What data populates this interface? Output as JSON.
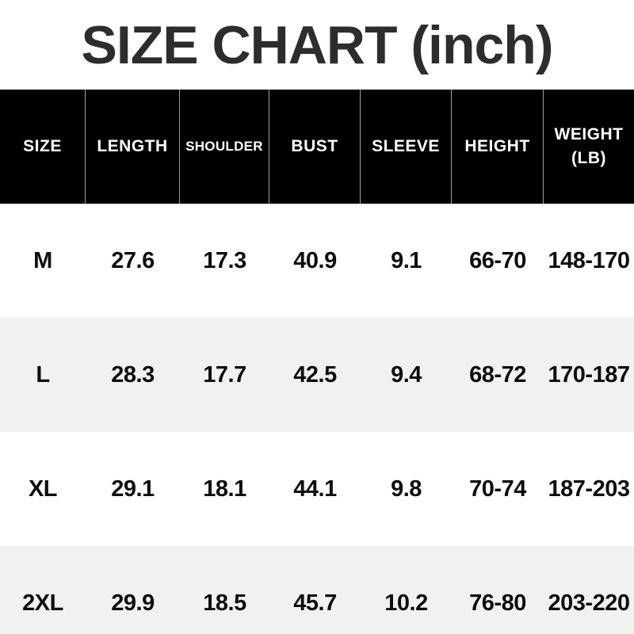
{
  "title": "SIZE CHART (inch)",
  "colors": {
    "header_bg": "#000000",
    "header_text": "#ffffff",
    "row_alt_bg": "#f1f1f0",
    "row_bg": "#ffffff",
    "title_color": "#2d2d2d",
    "body_text": "#0d0d0d",
    "header_divider": "#9e9e9e"
  },
  "table": {
    "columns": [
      {
        "label": "SIZE"
      },
      {
        "label": "LENGTH"
      },
      {
        "label": "SHOULDER"
      },
      {
        "label": "BUST"
      },
      {
        "label": "SLEEVE"
      },
      {
        "label": "HEIGHT"
      },
      {
        "label": "WEIGHT",
        "label_line2": "(LB)"
      }
    ],
    "rows": [
      {
        "size": "M",
        "length": "27.6",
        "shoulder": "17.3",
        "bust": "40.9",
        "sleeve": "9.1",
        "height": "66-70",
        "weight": "148-170"
      },
      {
        "size": "L",
        "length": "28.3",
        "shoulder": "17.7",
        "bust": "42.5",
        "sleeve": "9.4",
        "height": "68-72",
        "weight": "170-187"
      },
      {
        "size": "XL",
        "length": "29.1",
        "shoulder": "18.1",
        "bust": "44.1",
        "sleeve": "9.8",
        "height": "70-74",
        "weight": "187-203"
      },
      {
        "size": "2XL",
        "length": "29.9",
        "shoulder": "18.5",
        "bust": "45.7",
        "sleeve": "10.2",
        "height": "76-80",
        "weight": "203-220"
      }
    ]
  },
  "chart_data": {
    "type": "table",
    "title": "SIZE CHART (inch)",
    "columns": [
      "SIZE",
      "LENGTH",
      "SHOULDER",
      "BUST",
      "SLEEVE",
      "HEIGHT",
      "WEIGHT (LB)"
    ],
    "rows": [
      [
        "M",
        27.6,
        17.3,
        40.9,
        9.1,
        "66-70",
        "148-170"
      ],
      [
        "L",
        28.3,
        17.7,
        42.5,
        9.4,
        "68-72",
        "170-187"
      ],
      [
        "XL",
        29.1,
        18.1,
        44.1,
        9.8,
        "70-74",
        "187-203"
      ],
      [
        "2XL",
        29.9,
        18.5,
        45.7,
        10.2,
        "76-80",
        "203-220"
      ]
    ]
  }
}
